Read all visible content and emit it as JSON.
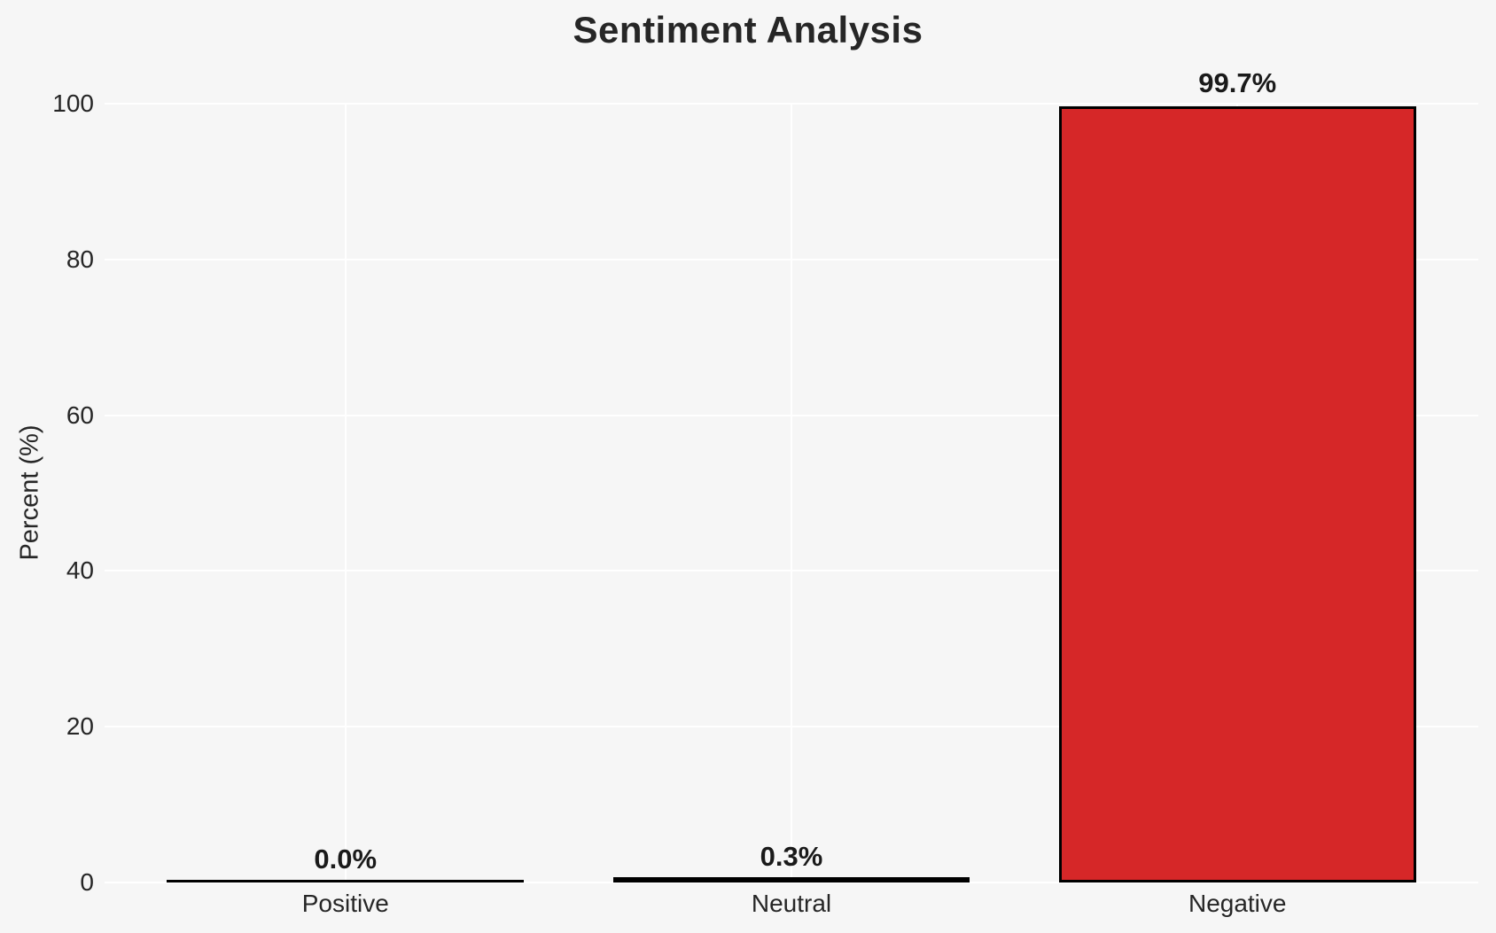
{
  "chart_data": {
    "type": "bar",
    "title": "Sentiment Analysis",
    "xlabel": "",
    "ylabel": "Percent (%)",
    "categories": [
      "Positive",
      "Neutral",
      "Negative"
    ],
    "values": [
      0.0,
      0.3,
      99.7
    ],
    "bar_labels": [
      "0.0%",
      "0.3%",
      "99.7%"
    ],
    "yticks": [
      0,
      20,
      40,
      60,
      80,
      100
    ],
    "ylim": [
      0,
      100
    ],
    "grid": true,
    "legend": false,
    "colors": {
      "background": "#f6f6f6",
      "grid_line": "#ffffff",
      "bar_edge": "#000000",
      "bar_fills": [
        null,
        null,
        "#d62728"
      ],
      "text": "#262626",
      "value_label_text": "#1a1a1a"
    }
  }
}
